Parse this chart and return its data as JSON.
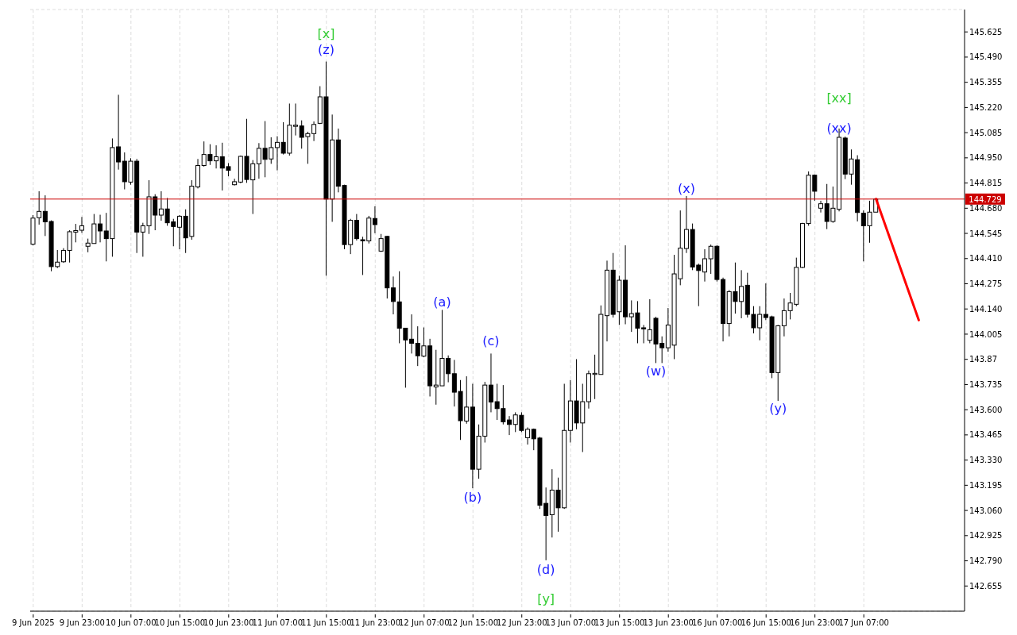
{
  "chart_data": {
    "type": "candlestick",
    "categories": [
      "9 Jun 2025",
      null,
      null,
      null,
      null,
      null,
      null,
      null,
      "9 Jun 23:00",
      null,
      null,
      null,
      null,
      null,
      null,
      null,
      "10 Jun 07:00",
      null,
      null,
      null,
      null,
      null,
      null,
      null,
      "10 Jun 15:00",
      null,
      null,
      null,
      null,
      null,
      null,
      null,
      "10 Jun 23:00",
      null,
      null,
      null,
      null,
      null,
      null,
      null,
      "11 Jun 07:00",
      null,
      null,
      null,
      null,
      null,
      null,
      null,
      "11 Jun 15:00",
      null,
      null,
      null,
      null,
      null,
      null,
      null,
      "11 Jun 23:00",
      null,
      null,
      null,
      null,
      null,
      null,
      null,
      "12 Jun 07:00",
      null,
      null,
      null,
      null,
      null,
      null,
      null,
      "12 Jun 15:00",
      null,
      null,
      null,
      null,
      null,
      null,
      null,
      "12 Jun 23:00",
      null,
      null,
      null,
      null,
      null,
      null,
      null,
      "13 Jun 07:00",
      null,
      null,
      null,
      null,
      null,
      null,
      null,
      "13 Jun 15:00",
      null,
      null,
      null,
      null,
      null,
      null,
      null,
      "13 Jun 23:00",
      null,
      null,
      null,
      null,
      null,
      null,
      null,
      "16 Jun 07:00",
      null,
      null,
      null,
      null,
      null,
      null,
      null,
      "16 Jun 15:00",
      null,
      null,
      null,
      null,
      null,
      null,
      null,
      "16 Jun 23:00",
      null,
      null,
      null,
      null,
      null,
      null,
      null,
      "17 Jun 07:00",
      null,
      null,
      null,
      null,
      null,
      null,
      null,
      null,
      null,
      null,
      null,
      null,
      null,
      null,
      null,
      null
    ],
    "ohlc": [
      [
        144.487,
        144.643,
        144.481,
        144.627
      ],
      [
        144.629,
        144.771,
        144.592,
        144.663
      ],
      [
        144.663,
        144.749,
        144.531,
        144.607
      ],
      [
        144.609,
        144.615,
        144.342,
        144.367
      ],
      [
        144.367,
        144.456,
        144.359,
        144.391
      ],
      [
        144.393,
        144.466,
        144.387,
        144.454
      ],
      [
        144.454,
        144.562,
        144.389,
        144.554
      ],
      [
        144.552,
        144.596,
        144.497,
        144.56
      ],
      [
        144.562,
        144.633,
        144.548,
        144.586
      ],
      [
        144.476,
        144.517,
        144.444,
        144.493
      ],
      [
        144.491,
        144.649,
        144.491,
        144.596
      ],
      [
        144.596,
        144.645,
        144.497,
        144.558
      ],
      [
        144.558,
        144.655,
        144.395,
        144.517
      ],
      [
        144.517,
        145.054,
        144.42,
        145.005
      ],
      [
        145.009,
        145.288,
        144.887,
        144.928
      ],
      [
        144.932,
        144.979,
        144.781,
        144.822
      ],
      [
        144.82,
        144.948,
        144.806,
        144.932
      ],
      [
        144.932,
        144.944,
        144.44,
        144.552
      ],
      [
        144.552,
        144.602,
        144.42,
        144.586
      ],
      [
        144.586,
        144.83,
        144.542,
        144.741
      ],
      [
        144.741,
        144.755,
        144.562,
        144.643
      ],
      [
        144.643,
        144.771,
        144.613,
        144.676
      ],
      [
        144.676,
        144.735,
        144.586,
        144.602
      ],
      [
        144.607,
        144.623,
        144.476,
        144.582
      ],
      [
        144.578,
        144.643,
        144.46,
        144.637
      ],
      [
        144.637,
        144.674,
        144.44,
        144.521
      ],
      [
        144.529,
        144.83,
        144.511,
        144.798
      ],
      [
        144.794,
        144.944,
        144.786,
        144.909
      ],
      [
        144.909,
        145.038,
        144.903,
        144.968
      ],
      [
        144.968,
        145.023,
        144.912,
        144.934
      ],
      [
        144.934,
        145.017,
        144.893,
        144.956
      ],
      [
        144.956,
        145.031,
        144.775,
        144.895
      ],
      [
        144.903,
        144.922,
        144.851,
        144.883
      ],
      [
        144.806,
        144.838,
        144.802,
        144.822
      ],
      [
        144.82,
        144.962,
        144.814,
        144.958
      ],
      [
        144.958,
        145.159,
        144.816,
        144.834
      ],
      [
        144.832,
        144.938,
        144.649,
        144.918
      ],
      [
        144.918,
        145.029,
        144.838,
        145.001
      ],
      [
        145.001,
        145.147,
        144.846,
        144.942
      ],
      [
        144.944,
        145.06,
        144.918,
        145.005
      ],
      [
        145.005,
        145.066,
        144.883,
        145.033
      ],
      [
        145.033,
        145.141,
        144.968,
        144.975
      ],
      [
        144.975,
        145.241,
        144.962,
        145.125
      ],
      [
        145.119,
        145.241,
        145.07,
        145.125
      ],
      [
        145.121,
        145.151,
        144.999,
        145.06
      ],
      [
        145.064,
        145.09,
        144.918,
        145.08
      ],
      [
        145.08,
        145.145,
        145.04,
        145.129
      ],
      [
        145.135,
        145.334,
        145.131,
        145.277
      ],
      [
        145.277,
        145.466,
        144.318,
        144.729
      ],
      [
        144.729,
        145.182,
        144.607,
        145.046
      ],
      [
        145.046,
        145.107,
        144.765,
        144.798
      ],
      [
        144.802,
        144.806,
        144.46,
        144.485
      ],
      [
        144.485,
        144.623,
        144.434,
        144.615
      ],
      [
        144.615,
        144.649,
        144.507,
        144.517
      ],
      [
        144.511,
        144.527,
        144.322,
        144.505
      ],
      [
        144.505,
        144.639,
        144.491,
        144.627
      ],
      [
        144.625,
        144.69,
        144.546,
        144.592
      ],
      [
        144.45,
        144.542,
        144.446,
        144.517
      ],
      [
        144.529,
        144.531,
        144.196,
        144.253
      ],
      [
        144.253,
        144.314,
        144.111,
        144.18
      ],
      [
        144.178,
        144.342,
        143.956,
        144.037
      ],
      [
        144.037,
        144.037,
        143.718,
        143.974
      ],
      [
        143.978,
        144.111,
        143.901,
        143.956
      ],
      [
        143.956,
        144.047,
        143.834,
        143.889
      ],
      [
        143.887,
        144.041,
        143.881,
        143.942
      ],
      [
        143.942,
        143.98,
        143.671,
        143.728
      ],
      [
        143.722,
        143.921,
        143.627,
        143.732
      ],
      [
        143.728,
        144.135,
        143.728,
        143.875
      ],
      [
        143.875,
        143.891,
        143.747,
        143.793
      ],
      [
        143.793,
        143.867,
        143.617,
        143.694
      ],
      [
        143.698,
        143.759,
        143.438,
        143.541
      ],
      [
        143.539,
        143.779,
        143.525,
        143.614
      ],
      [
        143.614,
        143.739,
        143.179,
        143.281
      ],
      [
        143.281,
        143.521,
        143.23,
        143.458
      ],
      [
        143.458,
        143.749,
        143.424,
        143.732
      ],
      [
        143.732,
        143.901,
        143.586,
        143.641
      ],
      [
        143.643,
        143.739,
        143.545,
        143.606
      ],
      [
        143.606,
        143.732,
        143.521,
        143.535
      ],
      [
        143.545,
        143.566,
        143.464,
        143.521
      ],
      [
        143.521,
        143.586,
        143.48,
        143.572
      ],
      [
        143.57,
        143.586,
        143.48,
        143.489
      ],
      [
        143.45,
        143.505,
        143.413,
        143.495
      ],
      [
        143.495,
        143.499,
        143.383,
        143.444
      ],
      [
        143.448,
        143.454,
        143.068,
        143.088
      ],
      [
        143.098,
        143.183,
        142.793,
        143.033
      ],
      [
        143.037,
        143.281,
        142.915,
        143.169
      ],
      [
        143.169,
        143.236,
        142.946,
        143.074
      ],
      [
        143.074,
        143.739,
        143.068,
        143.489
      ],
      [
        143.489,
        143.759,
        143.424,
        143.647
      ],
      [
        143.647,
        143.871,
        143.495,
        143.529
      ],
      [
        143.529,
        143.739,
        143.373,
        143.643
      ],
      [
        143.643,
        143.81,
        143.606,
        143.793
      ],
      [
        143.789,
        143.895,
        143.657,
        143.795
      ],
      [
        143.789,
        144.159,
        143.789,
        144.111
      ],
      [
        144.104,
        144.399,
        143.966,
        144.348
      ],
      [
        144.348,
        144.44,
        144.094,
        144.111
      ],
      [
        144.125,
        144.318,
        144.054,
        144.294
      ],
      [
        144.294,
        144.481,
        144.058,
        144.098
      ],
      [
        144.098,
        144.186,
        144.017,
        144.115
      ],
      [
        144.119,
        144.182,
        143.956,
        144.037
      ],
      [
        144.039,
        144.054,
        143.956,
        144.033
      ],
      [
        143.972,
        144.192,
        143.956,
        144.029
      ],
      [
        144.09,
        144.098,
        143.85,
        143.952
      ],
      [
        143.956,
        143.993,
        143.85,
        143.932
      ],
      [
        143.932,
        144.145,
        143.911,
        144.054
      ],
      [
        143.946,
        144.43,
        143.871,
        144.328
      ],
      [
        144.302,
        144.668,
        144.267,
        144.466
      ],
      [
        144.464,
        144.745,
        144.44,
        144.566
      ],
      [
        144.566,
        144.598,
        144.348,
        144.365
      ],
      [
        144.375,
        144.383,
        144.155,
        144.346
      ],
      [
        144.338,
        144.46,
        144.287,
        144.409
      ],
      [
        144.409,
        144.485,
        144.328,
        144.476
      ],
      [
        144.476,
        144.481,
        144.287,
        144.298
      ],
      [
        144.298,
        144.308,
        143.966,
        144.062
      ],
      [
        144.062,
        144.241,
        143.993,
        144.233
      ],
      [
        144.233,
        144.389,
        144.115,
        144.18
      ],
      [
        144.18,
        144.348,
        144.09,
        144.261
      ],
      [
        144.267,
        144.334,
        144.094,
        144.111
      ],
      [
        144.111,
        144.155,
        144.009,
        144.039
      ],
      [
        144.039,
        144.155,
        143.972,
        144.111
      ],
      [
        144.111,
        144.277,
        144.08,
        144.094
      ],
      [
        144.098,
        144.104,
        143.769,
        143.799
      ],
      [
        143.799,
        144.054,
        143.647,
        144.05
      ],
      [
        144.05,
        144.196,
        143.993,
        144.131
      ],
      [
        144.131,
        144.226,
        144.084,
        144.172
      ],
      [
        144.165,
        144.415,
        144.155,
        144.363
      ],
      [
        144.363,
        144.602,
        144.359,
        144.598
      ],
      [
        144.598,
        144.877,
        144.586,
        144.857
      ],
      [
        144.857,
        144.861,
        144.72,
        144.771
      ],
      [
        144.68,
        144.72,
        144.657,
        144.704
      ],
      [
        144.704,
        144.81,
        144.568,
        144.609
      ],
      [
        144.609,
        144.796,
        144.602,
        144.68
      ],
      [
        144.674,
        145.107,
        144.663,
        145.06
      ],
      [
        145.056,
        145.064,
        144.836,
        144.863
      ],
      [
        144.863,
        144.995,
        144.806,
        144.944
      ],
      [
        144.94,
        144.964,
        144.609,
        144.657
      ],
      [
        144.653,
        144.668,
        144.395,
        144.586
      ],
      [
        144.586,
        144.72,
        144.495,
        144.659
      ],
      [
        144.659,
        144.729,
        144.659,
        144.729
      ],
      null,
      null,
      null,
      null,
      null,
      null,
      null,
      null,
      null,
      null,
      null,
      null,
      null,
      null
    ],
    "series": [
      {
        "type": "line",
        "values": [
          null,
          null,
          null,
          null,
          null,
          null,
          null,
          null,
          null,
          null,
          null,
          null,
          null,
          null,
          null,
          null,
          null,
          null,
          null,
          null,
          null,
          null,
          null,
          null,
          null,
          null,
          null,
          null,
          null,
          null,
          null,
          null,
          null,
          null,
          null,
          null,
          null,
          null,
          null,
          null,
          null,
          null,
          null,
          null,
          null,
          null,
          null,
          null,
          null,
          null,
          null,
          null,
          null,
          null,
          null,
          null,
          null,
          null,
          null,
          null,
          null,
          null,
          null,
          null,
          null,
          null,
          null,
          null,
          null,
          null,
          null,
          null,
          null,
          null,
          null,
          null,
          null,
          null,
          null,
          null,
          null,
          null,
          null,
          null,
          null,
          null,
          null,
          null,
          null,
          null,
          null,
          null,
          null,
          null,
          null,
          null,
          null,
          null,
          null,
          null,
          null,
          null,
          null,
          null,
          null,
          null,
          null,
          null,
          null,
          null,
          null,
          null,
          null,
          null,
          null,
          null,
          null,
          null,
          null,
          null,
          null,
          null,
          null,
          null,
          null,
          null,
          null,
          null,
          null,
          null,
          null,
          null,
          null,
          null,
          null,
          null,
          null,
          null,
          144.73,
          null,
          null,
          null,
          null,
          null,
          null,
          144.08,
          null,
          null,
          null,
          null,
          null,
          null,
          null
        ],
        "color": "#ff0000"
      }
    ],
    "ylim": [
      142.52,
      145.745
    ],
    "yticks": [
      142.655,
      {
        "value": 142.79,
        "label": "142.790"
      },
      142.925,
      {
        "value": 143.06,
        "label": "143.060"
      },
      143.195,
      {
        "value": 143.33,
        "label": "143.330"
      },
      143.465,
      {
        "value": 143.6,
        "label": "143.600"
      },
      143.735,
      143.87,
      144.005,
      {
        "value": 144.14,
        "label": "144.140"
      },
      144.275,
      {
        "value": 144.41,
        "label": "144.410"
      },
      144.545,
      {
        "value": 144.68,
        "label": "144.680"
      },
      144.815,
      {
        "value": 144.95,
        "label": "144.950"
      },
      145.085,
      {
        "value": 145.22,
        "label": "145.220"
      },
      145.355,
      {
        "value": 145.49,
        "label": "145.490"
      },
      145.625
    ],
    "grid": true,
    "ref_lines": [
      {
        "axis": "y",
        "value": 144.729,
        "label": "144.729",
        "color": "#cc0000"
      }
    ],
    "annotations": [
      "[x]",
      "(z)",
      "(a)",
      "(b)",
      "(c)",
      "(d)",
      "[y]",
      "(w)",
      "(x)",
      "(y)",
      "(xx)",
      "[xx]"
    ]
  }
}
